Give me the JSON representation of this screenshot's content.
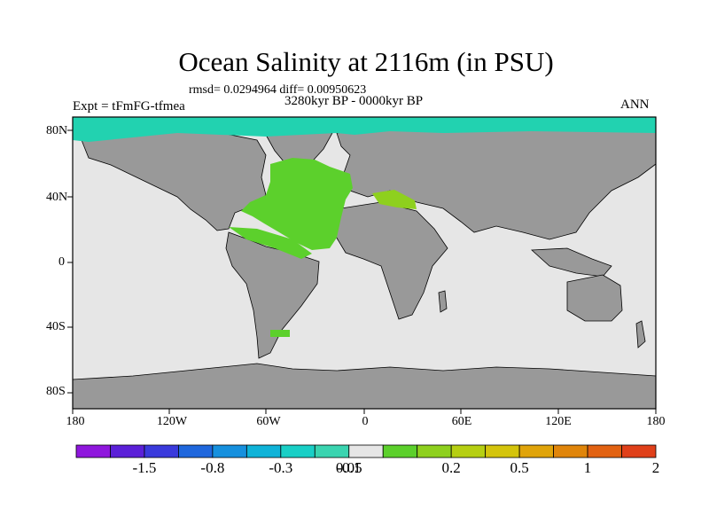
{
  "title": "Ocean Salinity at 2116m (in PSU)",
  "stats": "rmsd= 0.0294964 diff= 0.00950623",
  "period": "3280kyr BP - 0000kyr BP",
  "experiment": "Expt = tFmFG-tfmea",
  "season": "ANN",
  "y_ticks": [
    "80N",
    "40N",
    "0",
    "40S",
    "80S"
  ],
  "x_ticks": [
    "180",
    "120W",
    "60W",
    "0",
    "60E",
    "120E",
    "180"
  ],
  "colorbar": {
    "colors": [
      "#8f17dd",
      "#5b20d8",
      "#3a3adc",
      "#1f67dd",
      "#1690de",
      "#0fb3d8",
      "#19cfc6",
      "#3ad4b0",
      "#e6e6e6",
      "#5cd02c",
      "#8ed01e",
      "#b6cf12",
      "#d4c40c",
      "#e0a40a",
      "#e0850a",
      "#e26212",
      "#e0401a"
    ],
    "labels": [
      "-1.5",
      "-0.8",
      "-0.3",
      "-0.1",
      "0.05",
      "0.2",
      "0.5",
      "1",
      "2"
    ]
  },
  "map_colors": {
    "ocean": "#e6e6e6",
    "land": "#999999",
    "arctic": "#22d2b0",
    "atlantic": "#5cd02c",
    "gulf": "#8ed01e"
  }
}
